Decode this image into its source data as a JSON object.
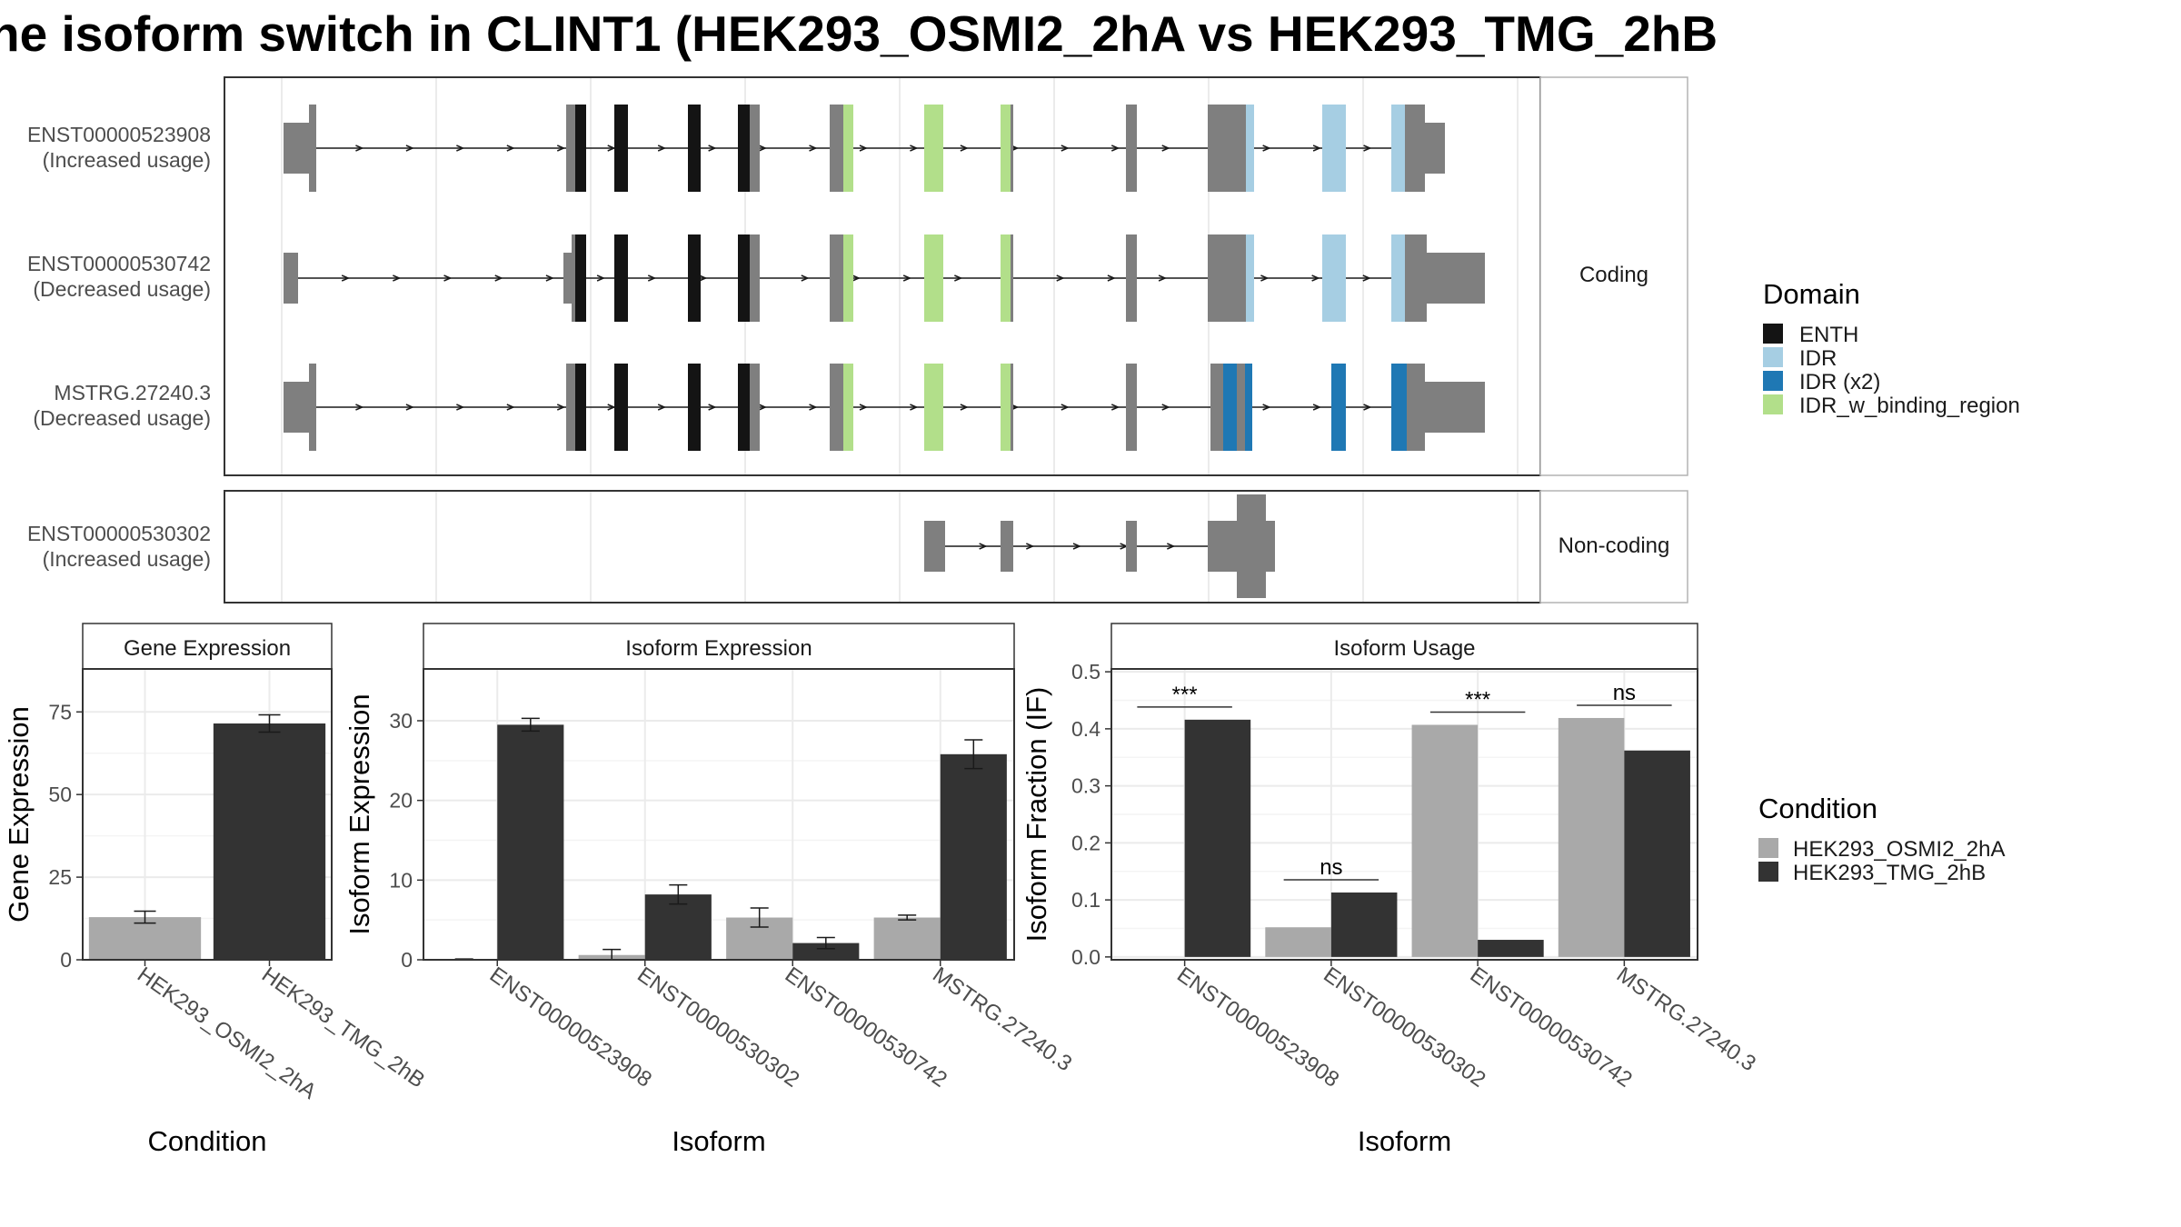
{
  "title": "he isoform switch in CLINT1 (HEK293_OSMI2_2hA vs HEK293_TMG_2hB",
  "colors": {
    "ENTH": "#141414",
    "IDR": "#a6cee3",
    "IDR (x2)": "#1f78b4",
    "IDR_w_binding_region": "#b2df8a",
    "exon": "#7f7f7f",
    "cond_a": "#a9a9a9",
    "cond_b": "#333333",
    "grid": "#ebebeb"
  },
  "structure": {
    "facets": [
      "Coding",
      "Non-coding"
    ],
    "transcripts": [
      {
        "id": "ENST00000523908",
        "usage": "(Increased usage)",
        "facet": "Coding"
      },
      {
        "id": "ENST00000530742",
        "usage": "(Decreased usage)",
        "facet": "Coding"
      },
      {
        "id": "MSTRG.27240.3",
        "usage": "(Decreased usage)",
        "facet": "Coding"
      },
      {
        "id": "ENST00000530302",
        "usage": "(Increased usage)",
        "facet": "Non-coding"
      }
    ]
  },
  "domain_legend": {
    "title": "Domain",
    "items": [
      {
        "label": "ENTH",
        "color_key": "ENTH"
      },
      {
        "label": "IDR",
        "color_key": "IDR"
      },
      {
        "label": "IDR (x2)",
        "color_key": "IDR (x2)"
      },
      {
        "label": "IDR_w_binding_region",
        "color_key": "IDR_w_binding_region"
      }
    ]
  },
  "condition_legend": {
    "title": "Condition",
    "items": [
      {
        "label": "HEK293_OSMI2_2hA",
        "color_key": "cond_a"
      },
      {
        "label": "HEK293_TMG_2hB",
        "color_key": "cond_b"
      }
    ]
  },
  "chart_data": [
    {
      "type": "bar",
      "title": "Gene Expression",
      "xlabel": "Condition",
      "ylabel": "Gene Expression",
      "ylim": [
        0,
        88
      ],
      "yticks": [
        0,
        25,
        50,
        75
      ],
      "categories": [
        "HEK293_OSMI2_2hA",
        "HEK293_TMG_2hB"
      ],
      "values": [
        12.9,
        71.5
      ],
      "errors": [
        1.8,
        2.6
      ]
    },
    {
      "type": "bar",
      "title": "Isoform Expression",
      "xlabel": "Isoform",
      "ylabel": "Isoform Expression",
      "ylim": [
        0,
        36.5
      ],
      "yticks": [
        0,
        10,
        20,
        30
      ],
      "categories": [
        "ENST00000523908",
        "ENST00000530302",
        "ENST00000530742",
        "MSTRG.27240.3"
      ],
      "series": [
        {
          "name": "HEK293_OSMI2_2hA",
          "values": [
            0.05,
            0.6,
            5.3,
            5.3
          ],
          "errors": [
            0.05,
            0.7,
            1.2,
            0.3
          ]
        },
        {
          "name": "HEK293_TMG_2hB",
          "values": [
            29.5,
            8.2,
            2.1,
            25.8
          ],
          "errors": [
            0.8,
            1.2,
            0.7,
            1.8
          ]
        }
      ]
    },
    {
      "type": "bar",
      "title": "Isoform Usage",
      "xlabel": "Isoform",
      "ylabel": "Isoform Fraction (IF)",
      "ylim": [
        -0.005,
        0.505
      ],
      "yticks": [
        0.0,
        0.1,
        0.2,
        0.3,
        0.4,
        0.5
      ],
      "categories": [
        "ENST00000523908",
        "ENST00000530302",
        "ENST00000530742",
        "MSTRG.27240.3"
      ],
      "series": [
        {
          "name": "HEK293_OSMI2_2hA",
          "values": [
            0.0,
            0.052,
            0.407,
            0.419
          ]
        },
        {
          "name": "HEK293_TMG_2hB",
          "values": [
            0.416,
            0.113,
            0.03,
            0.362
          ]
        }
      ],
      "significance": [
        "***",
        "ns",
        "***",
        "ns"
      ]
    }
  ]
}
